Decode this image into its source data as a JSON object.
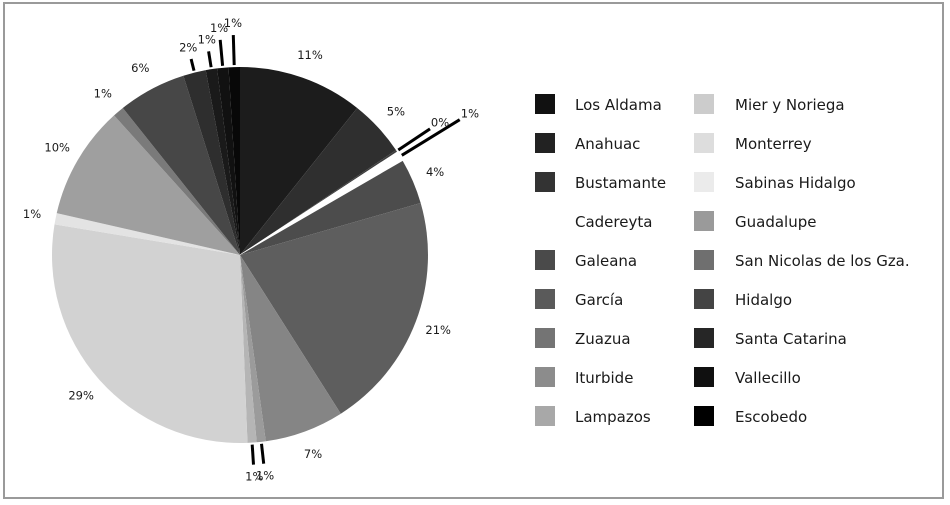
{
  "chart_data": {
    "type": "pie",
    "start_angle_deg": 0,
    "direction": "clockwise",
    "slices": [
      {
        "label": "Los Aldama",
        "value": 11,
        "value_label": "11%",
        "color": "#1c1c1c"
      },
      {
        "label": "Anahuac",
        "value": 5,
        "value_label": "5%",
        "color": "#2f2f2f"
      },
      {
        "label": "Bustamante",
        "value": 0.2,
        "value_label": "0%",
        "color": "#3d3d3d"
      },
      {
        "label": "Cadereyta",
        "value": 0.9,
        "value_label": "1%",
        "color": "#ffffff"
      },
      {
        "label": "Galeana",
        "value": 4,
        "value_label": "4%",
        "color": "#4c4c4c"
      },
      {
        "label": "García",
        "value": 21,
        "value_label": "21%",
        "color": "#5e5e5e"
      },
      {
        "label": "Zuazua",
        "value": 7,
        "value_label": "7%",
        "color": "#858585"
      },
      {
        "label": "Iturbide",
        "value": 0.8,
        "value_label": "1%",
        "color": "#9b9b9b"
      },
      {
        "label": "Lampazos",
        "value": 0.8,
        "value_label": "1%",
        "color": "#b5b5b5"
      },
      {
        "label": "Mier y Noriega",
        "value": 29,
        "value_label": "29%",
        "color": "#d2d2d2"
      },
      {
        "label": "Monterrey",
        "value": 1,
        "value_label": "1%",
        "color": "#e3e3e3"
      },
      {
        "label": "Sabinas Hidalgo",
        "value": 10,
        "value_label": "10%",
        "color": "#9f9f9f"
      },
      {
        "label": "Guadalupe",
        "value": 1,
        "value_label": "1%",
        "color": "#7a7a7a"
      },
      {
        "label": "San Nicolas de los Gza.",
        "value": 6,
        "value_label": "6%",
        "color": "#474747"
      },
      {
        "label": "Hidalgo",
        "value": 2,
        "value_label": "2%",
        "color": "#2e2e2e"
      },
      {
        "label": "Santa Catarina",
        "value": 1,
        "value_label": "1%",
        "color": "#1a1a1a"
      },
      {
        "label": "Vallecillo",
        "value": 1,
        "value_label": "1%",
        "color": "#111111"
      },
      {
        "label": "Escobedo",
        "value": 1,
        "value_label": "1%",
        "color": "#080808"
      }
    ],
    "legend": {
      "placement": "right",
      "column_1": [
        {
          "label": "Los Aldama",
          "color": "#111111"
        },
        {
          "label": "Anahuac",
          "color": "#222222"
        },
        {
          "label": "Bustamante",
          "color": "#333333"
        },
        {
          "label": "Cadereyta",
          "color": "#ffffff"
        },
        {
          "label": "Galeana",
          "color": "#4a4a4a"
        },
        {
          "label": "García",
          "color": "#5a5a5a"
        },
        {
          "label": "Zuazua",
          "color": "#747474"
        },
        {
          "label": "Iturbide",
          "color": "#8c8c8c"
        },
        {
          "label": "Lampazos",
          "color": "#a8a8a8"
        }
      ],
      "column_2": [
        {
          "label": "Mier y Noriega",
          "color": "#cccccc"
        },
        {
          "label": "Monterrey",
          "color": "#dddddd"
        },
        {
          "label": "Sabinas Hidalgo",
          "color": "#ebebeb"
        },
        {
          "label": "Guadalupe",
          "color": "#9a9a9a"
        },
        {
          "label": "San Nicolas de los Gza.",
          "color": "#6f6f6f"
        },
        {
          "label": "Hidalgo",
          "color": "#444444"
        },
        {
          "label": "Santa Catarina",
          "color": "#262626"
        },
        {
          "label": "Vallecillo",
          "color": "#101010"
        },
        {
          "label": "Escobedo",
          "color": "#000000"
        }
      ]
    }
  }
}
